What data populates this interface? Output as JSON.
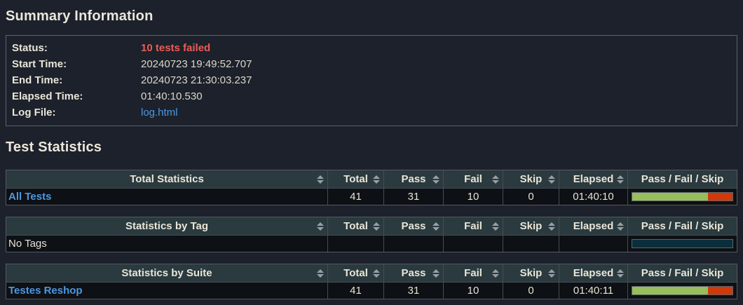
{
  "summary": {
    "title": "Summary Information",
    "rows": [
      {
        "label": "Status:",
        "value": "10 tests failed"
      },
      {
        "label": "Start Time:",
        "value": "20240723 19:49:52.707"
      },
      {
        "label": "End Time:",
        "value": "20240723 21:30:03.237"
      },
      {
        "label": "Elapsed Time:",
        "value": "01:40:10.530"
      },
      {
        "label": "Log File:",
        "value": "log.html"
      }
    ]
  },
  "statistics": {
    "title": "Test Statistics",
    "columns": [
      "Total",
      "Pass",
      "Fail",
      "Skip",
      "Elapsed",
      "Pass / Fail / Skip"
    ],
    "tables": [
      {
        "header": "Total Statistics",
        "rows": [
          {
            "name": "All Tests",
            "total": "41",
            "pass": "31",
            "fail": "10",
            "skip": "0",
            "elapsed": "01:40:10",
            "bar": {
              "pass": 75.6,
              "fail": 24.4
            }
          }
        ]
      },
      {
        "header": "Statistics by Tag",
        "rows": [
          {
            "name": "No Tags",
            "total": "",
            "pass": "",
            "fail": "",
            "skip": "",
            "elapsed": "",
            "bar": {
              "pass": 0,
              "fail": 0
            }
          }
        ]
      },
      {
        "header": "Statistics by Suite",
        "rows": [
          {
            "name": "Testes Reshop",
            "total": "41",
            "pass": "31",
            "fail": "10",
            "skip": "0",
            "elapsed": "01:40:11",
            "bar": {
              "pass": 75.6,
              "fail": 24.4
            }
          }
        ]
      }
    ]
  },
  "colors": {
    "page_bg": "#1c212b",
    "header_bg": "#2a3a3e",
    "row_bg": "#0d1014",
    "fail_text": "#ea5c54",
    "link_blue": "#4e97e2",
    "bar_pass_green": "#98bd5c",
    "bar_fail_red": "#d0390a",
    "bar_empty_teal": "#0a2e3a"
  }
}
